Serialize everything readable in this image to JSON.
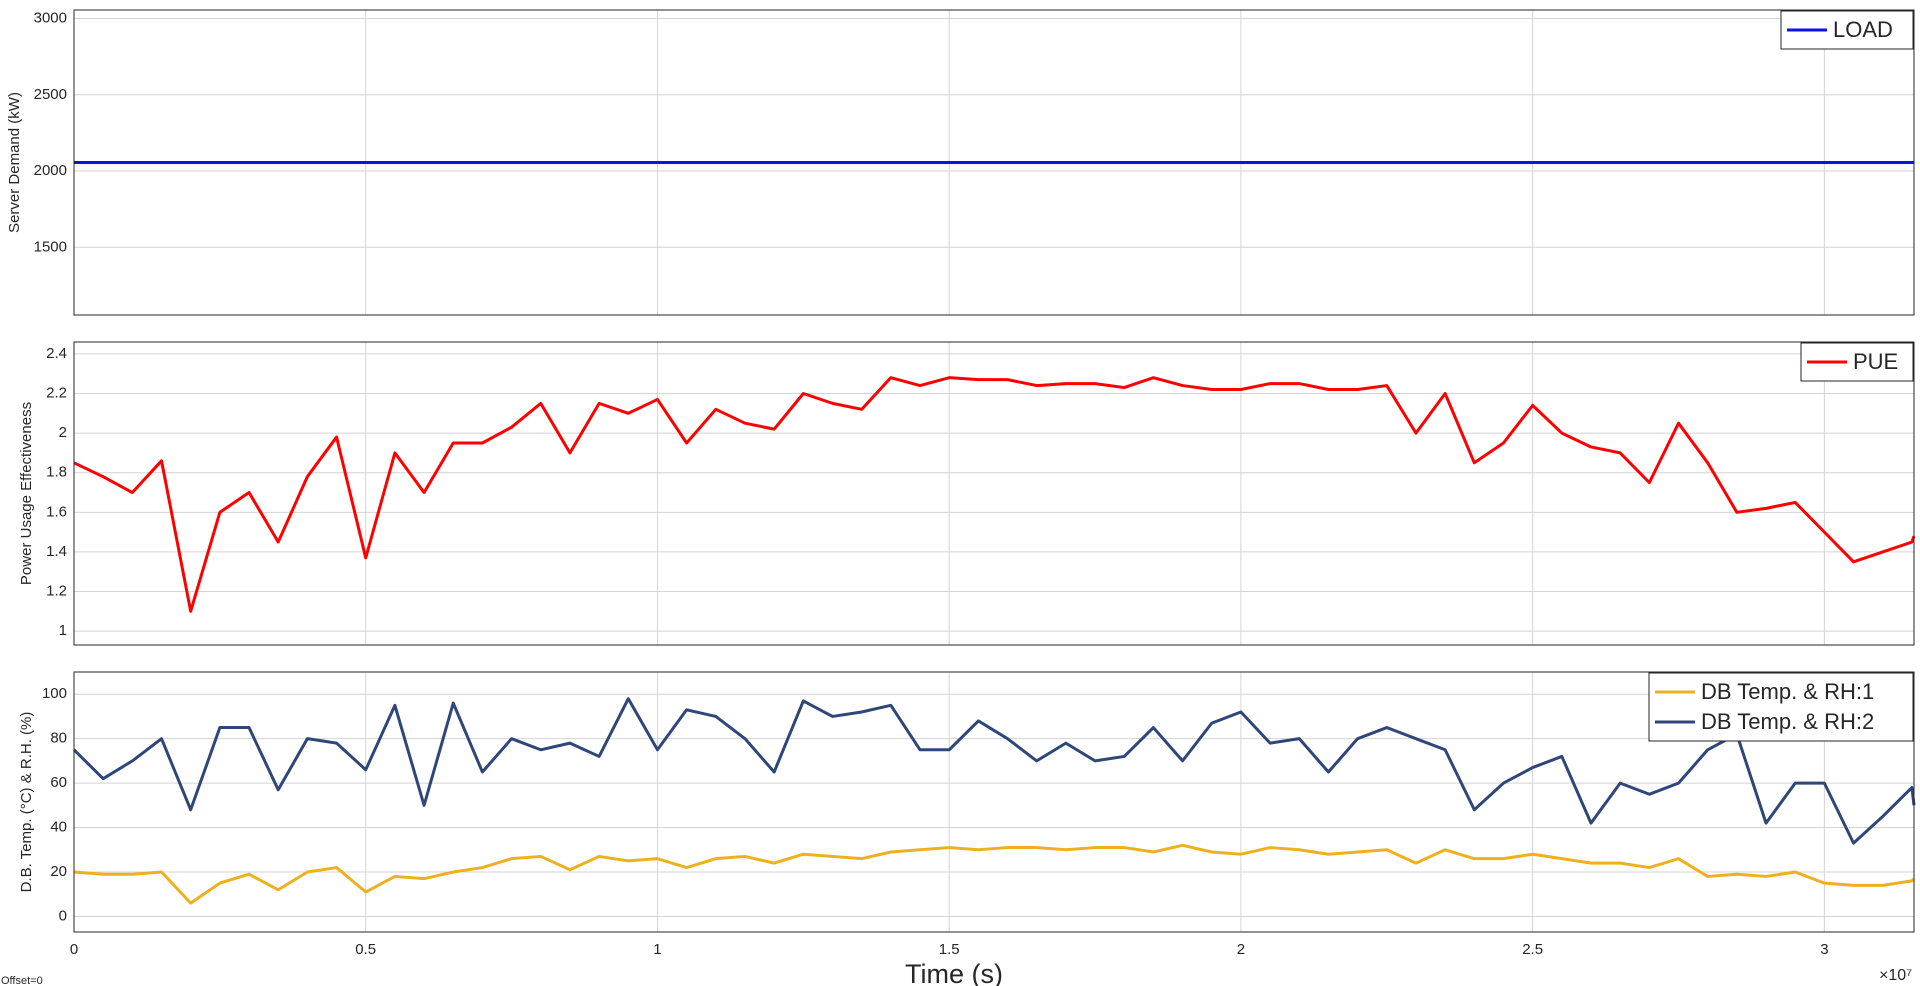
{
  "chart_data": [
    {
      "type": "line",
      "ylabel": "Server Demand (kW)",
      "x": [
        0,
        31536000
      ],
      "xlim": [
        0,
        31536000
      ],
      "xticks": [
        0,
        5000000,
        10000000,
        15000000,
        20000000,
        25000000,
        30000000
      ],
      "ylim": [
        1056,
        3056
      ],
      "yticks": [
        1500,
        2000,
        2500,
        3000
      ],
      "grid": true,
      "legend": "top-right",
      "series": [
        {
          "name": "LOAD",
          "color": "#0a14dc",
          "values": [
            2056,
            2056
          ]
        }
      ]
    },
    {
      "type": "line",
      "ylabel": "Power Usage Effectiveness",
      "x": [
        0,
        500000,
        1000000,
        1500000,
        2000000,
        2500000,
        3000000,
        3500000,
        4000000,
        4500000,
        5000000,
        5500000,
        6000000,
        6500000,
        7000000,
        7500000,
        8000000,
        8500000,
        9000000,
        9500000,
        10000000,
        10500000,
        11000000,
        11500000,
        12000000,
        12500000,
        13000000,
        13500000,
        14000000,
        14500000,
        15000000,
        15500000,
        16000000,
        16500000,
        17000000,
        17500000,
        18000000,
        18500000,
        19000000,
        19500000,
        20000000,
        20500000,
        21000000,
        21500000,
        22000000,
        22500000,
        23000000,
        23500000,
        24000000,
        24500000,
        25000000,
        25500000,
        26000000,
        26500000,
        27000000,
        27500000,
        28000000,
        28500000,
        29000000,
        29500000,
        30000000,
        30500000,
        31000000,
        31500000,
        31536000
      ],
      "xlim": [
        0,
        31536000
      ],
      "xticks": [
        0,
        5000000,
        10000000,
        15000000,
        20000000,
        25000000,
        30000000
      ],
      "ylim": [
        0.93,
        2.46
      ],
      "yticks": [
        1,
        1.2,
        1.4,
        1.6,
        1.8,
        2,
        2.2,
        2.4
      ],
      "grid": true,
      "legend": "top-right",
      "series": [
        {
          "name": "PUE",
          "color": "#ff0000",
          "values": [
            1.85,
            1.78,
            1.7,
            1.86,
            1.1,
            1.6,
            1.7,
            1.45,
            1.78,
            1.98,
            1.37,
            1.9,
            1.7,
            1.95,
            1.95,
            2.03,
            2.15,
            1.9,
            2.15,
            2.1,
            2.17,
            1.95,
            2.12,
            2.05,
            2.02,
            2.2,
            2.15,
            2.12,
            2.28,
            2.24,
            2.28,
            2.27,
            2.27,
            2.24,
            2.25,
            2.25,
            2.23,
            2.28,
            2.24,
            2.22,
            2.22,
            2.25,
            2.25,
            2.22,
            2.22,
            2.24,
            2.0,
            2.2,
            1.85,
            1.95,
            2.14,
            2.0,
            1.93,
            1.9,
            1.75,
            2.05,
            1.85,
            1.6,
            1.62,
            1.65,
            1.5,
            1.35,
            1.4,
            1.45,
            1.48
          ]
        }
      ]
    },
    {
      "type": "line",
      "ylabel": "D.B. Temp. (°C) & R.H. (%)",
      "xlabel": "Time (s)",
      "x_scale_label": "×10⁷",
      "offset_label": "Offset=0",
      "x": [
        0,
        500000,
        1000000,
        1500000,
        2000000,
        2500000,
        3000000,
        3500000,
        4000000,
        4500000,
        5000000,
        5500000,
        6000000,
        6500000,
        7000000,
        7500000,
        8000000,
        8500000,
        9000000,
        9500000,
        10000000,
        10500000,
        11000000,
        11500000,
        12000000,
        12500000,
        13000000,
        13500000,
        14000000,
        14500000,
        15000000,
        15500000,
        16000000,
        16500000,
        17000000,
        17500000,
        18000000,
        18500000,
        19000000,
        19500000,
        20000000,
        20500000,
        21000000,
        21500000,
        22000000,
        22500000,
        23000000,
        23500000,
        24000000,
        24500000,
        25000000,
        25500000,
        26000000,
        26500000,
        27000000,
        27500000,
        28000000,
        28500000,
        29000000,
        29500000,
        30000000,
        30500000,
        31000000,
        31500000,
        31536000
      ],
      "xlim": [
        0,
        31536000
      ],
      "xticks": [
        0,
        {
          "value": 5000000,
          "label": "0.5"
        },
        {
          "value": 10000000,
          "label": "1"
        },
        {
          "value": 15000000,
          "label": "1.5"
        },
        {
          "value": 20000000,
          "label": "2"
        },
        {
          "value": 25000000,
          "label": "2.5"
        },
        {
          "value": 30000000,
          "label": "3"
        }
      ],
      "ylim": [
        -7,
        110
      ],
      "yticks": [
        0,
        20,
        40,
        60,
        80,
        100
      ],
      "grid": true,
      "legend": "top-right",
      "series": [
        {
          "name": "DB Temp. & RH:1",
          "color": "#edb120",
          "values": [
            20,
            19,
            19,
            20,
            6,
            15,
            19,
            12,
            20,
            22,
            11,
            18,
            17,
            20,
            22,
            26,
            27,
            21,
            27,
            25,
            26,
            22,
            26,
            27,
            24,
            28,
            27,
            26,
            29,
            30,
            31,
            30,
            31,
            31,
            30,
            31,
            31,
            29,
            32,
            29,
            28,
            31,
            30,
            28,
            29,
            30,
            24,
            30,
            26,
            26,
            28,
            26,
            24,
            24,
            22,
            26,
            18,
            19,
            18,
            20,
            15,
            14,
            14,
            16,
            17
          ]
        },
        {
          "name": "DB Temp. & RH:2",
          "color": "#2f4678",
          "values": [
            75,
            62,
            70,
            80,
            48,
            85,
            85,
            57,
            80,
            78,
            66,
            95,
            50,
            96,
            65,
            80,
            75,
            78,
            72,
            98,
            75,
            93,
            90,
            80,
            65,
            97,
            90,
            92,
            95,
            75,
            75,
            88,
            80,
            70,
            78,
            70,
            72,
            85,
            70,
            87,
            92,
            78,
            80,
            65,
            80,
            85,
            80,
            75,
            48,
            60,
            67,
            72,
            42,
            60,
            55,
            60,
            75,
            82,
            42,
            60,
            60,
            33,
            45,
            58,
            50
          ]
        }
      ]
    }
  ]
}
